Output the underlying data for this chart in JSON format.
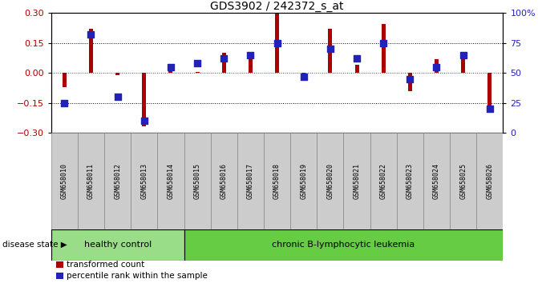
{
  "title": "GDS3902 / 242372_s_at",
  "samples": [
    "GSM658010",
    "GSM658011",
    "GSM658012",
    "GSM658013",
    "GSM658014",
    "GSM658015",
    "GSM658016",
    "GSM658017",
    "GSM658018",
    "GSM658019",
    "GSM658020",
    "GSM658021",
    "GSM658022",
    "GSM658023",
    "GSM658024",
    "GSM658025",
    "GSM658026"
  ],
  "red_bars": [
    -0.07,
    0.22,
    -0.01,
    -0.265,
    0.02,
    0.005,
    0.1,
    0.08,
    0.295,
    -0.02,
    0.22,
    0.04,
    0.245,
    -0.09,
    0.07,
    0.08,
    -0.2
  ],
  "blue_pct": [
    25,
    82,
    30,
    10,
    55,
    58,
    62,
    65,
    75,
    47,
    70,
    62,
    75,
    45,
    55,
    65,
    20
  ],
  "healthy_count": 5,
  "group1_label": "healthy control",
  "group2_label": "chronic B-lymphocytic leukemia",
  "disease_state_label": "disease state",
  "legend1": "transformed count",
  "legend2": "percentile rank within the sample",
  "ylim": [
    -0.3,
    0.3
  ],
  "yticks_left": [
    -0.3,
    -0.15,
    0.0,
    0.15,
    0.3
  ],
  "yticks_right": [
    0,
    25,
    50,
    75,
    100
  ],
  "bar_color": "#aa0000",
  "dot_color": "#2222bb",
  "hc_color": "#99dd88",
  "cl_color": "#66cc44",
  "xlabels_bg": "#cccccc",
  "bar_width": 0.15,
  "dot_size": 30
}
